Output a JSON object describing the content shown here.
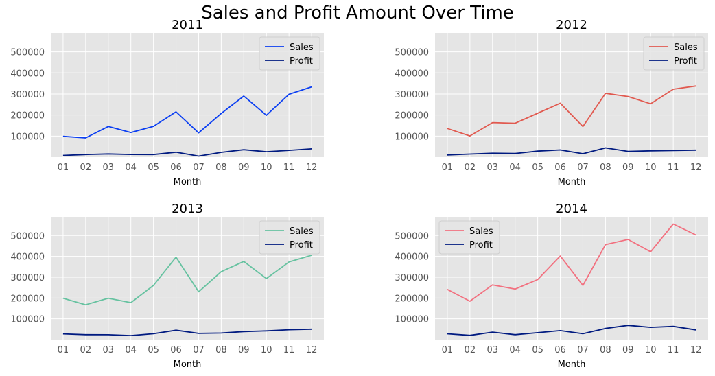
{
  "figure": {
    "title": "Sales and Profit Amount Over Time"
  },
  "chart_data": [
    {
      "type": "line",
      "title": "2011",
      "xlabel": "Month",
      "ylabel": "",
      "categories": [
        "01",
        "02",
        "03",
        "04",
        "05",
        "06",
        "07",
        "08",
        "09",
        "10",
        "11",
        "12"
      ],
      "ylim": [
        0,
        590000
      ],
      "yticks": [
        100000,
        200000,
        300000,
        400000,
        500000
      ],
      "grid": true,
      "legend": "top-right",
      "series": [
        {
          "name": "Sales",
          "color": "#0a3ef2",
          "values": [
            98900,
            91200,
            145700,
            116900,
            146500,
            215200,
            115500,
            207600,
            290200,
            199000,
            298500,
            333900
          ]
        },
        {
          "name": "Profit",
          "color": "#001a80",
          "values": [
            8300,
            12500,
            15400,
            12800,
            12500,
            23500,
            5000,
            22800,
            35100,
            25700,
            32300,
            39300
          ]
        }
      ]
    },
    {
      "type": "line",
      "title": "2012",
      "xlabel": "Month",
      "ylabel": "",
      "categories": [
        "01",
        "02",
        "03",
        "04",
        "05",
        "06",
        "07",
        "08",
        "09",
        "10",
        "11",
        "12"
      ],
      "ylim": [
        0,
        590000
      ],
      "yticks": [
        100000,
        200000,
        300000,
        400000,
        500000
      ],
      "grid": true,
      "legend": "top-right",
      "series": [
        {
          "name": "Sales",
          "color": "#e1594f",
          "values": [
            136200,
            100800,
            164300,
            161100,
            208500,
            256200,
            145400,
            303100,
            288200,
            253200,
            322800,
            338000
          ]
        },
        {
          "name": "Profit",
          "color": "#001a80",
          "values": [
            10500,
            14600,
            18500,
            17300,
            28700,
            34300,
            16200,
            43900,
            27500,
            30100,
            31400,
            33300
          ]
        }
      ]
    },
    {
      "type": "line",
      "title": "2013",
      "xlabel": "Month",
      "ylabel": "",
      "categories": [
        "01",
        "02",
        "03",
        "04",
        "05",
        "06",
        "07",
        "08",
        "09",
        "10",
        "11",
        "12"
      ],
      "ylim": [
        0,
        590000
      ],
      "yticks": [
        100000,
        200000,
        300000,
        400000,
        500000
      ],
      "grid": true,
      "legend": "top-right",
      "series": [
        {
          "name": "Sales",
          "color": "#66c2a0",
          "values": [
            199200,
            167400,
            199100,
            177500,
            260500,
            396300,
            229900,
            326500,
            375600,
            293400,
            373000,
            405400
          ]
        },
        {
          "name": "Profit",
          "color": "#001a80",
          "values": [
            27800,
            23800,
            23500,
            19300,
            28300,
            45300,
            30000,
            31800,
            38700,
            41700,
            47600,
            50200
          ]
        }
      ]
    },
    {
      "type": "line",
      "title": "2014",
      "xlabel": "Month",
      "ylabel": "",
      "categories": [
        "01",
        "02",
        "03",
        "04",
        "05",
        "06",
        "07",
        "08",
        "09",
        "10",
        "11",
        "12"
      ],
      "ylim": [
        0,
        590000
      ],
      "yticks": [
        100000,
        200000,
        300000,
        400000,
        500000
      ],
      "grid": true,
      "legend": "top-left",
      "series": [
        {
          "name": "Sales",
          "color": "#f2707f",
          "values": [
            241300,
            184500,
            263100,
            242800,
            288700,
            401800,
            260600,
            456600,
            481200,
            422100,
            555300,
            503100
          ]
        },
        {
          "name": "Profit",
          "color": "#001a80",
          "values": [
            28000,
            20600,
            36000,
            23600,
            33400,
            43300,
            28500,
            53800,
            68500,
            59000,
            63700,
            46900
          ]
        }
      ]
    }
  ]
}
